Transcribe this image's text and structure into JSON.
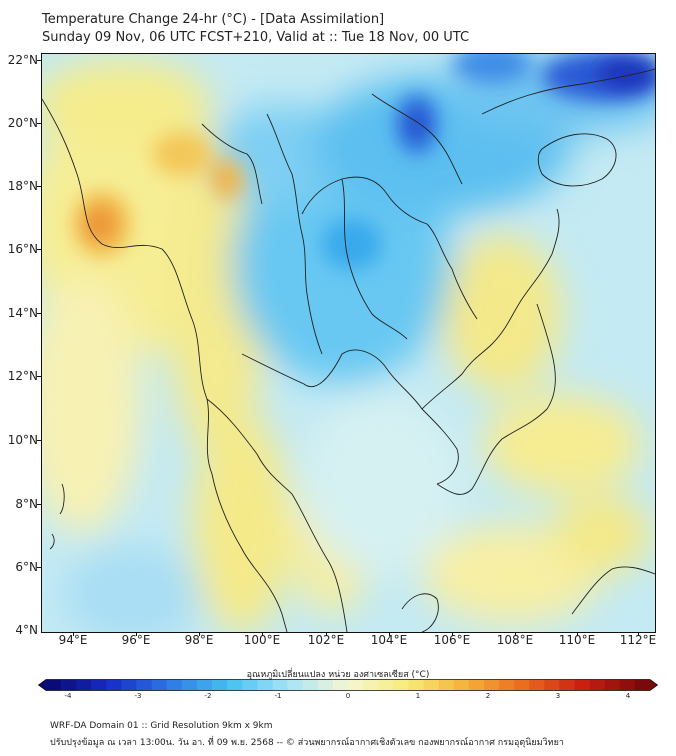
{
  "header": {
    "title": "Temperature Change 24-hr (°C) - [Data Assimilation]",
    "subtitle": "Sunday 09 Nov, 06 UTC FCST+210, Valid at :: Tue 18 Nov, 00 UTC"
  },
  "map": {
    "lat_labels": [
      "22°N",
      "20°N",
      "18°N",
      "16°N",
      "14°N",
      "12°N",
      "10°N",
      "8°N",
      "6°N",
      "4°N"
    ],
    "lon_labels": [
      "94°E",
      "96°E",
      "98°E",
      "100°E",
      "102°E",
      "104°E",
      "106°E",
      "108°E",
      "110°E",
      "112°E"
    ],
    "lat_range": [
      4,
      22.3
    ],
    "lon_range": [
      93.1,
      112.5
    ],
    "field_colors": {
      "cold_strong": "#1b3fd1",
      "cold": "#3fb4ee",
      "cool": "#8fd6f5",
      "neutral": "#dff3ee",
      "warm": "#f6ed8a",
      "hot": "#f3a53a",
      "very_hot": "#e8752a"
    }
  },
  "colorbar": {
    "title": "อุณหภูมิเปลี่ยนแปลง หน่วย องศาเซลเซียส (°C)",
    "labels": [
      "-4",
      "-3",
      "-2",
      "-1",
      "0",
      "1",
      "2",
      "3",
      "4"
    ],
    "range": [
      -4,
      4
    ],
    "colors": [
      "#0a0a78",
      "#1830c8",
      "#2f7be6",
      "#46c2f0",
      "#a8e4f5",
      "#f6f6d4",
      "#f7ec7a",
      "#f4b23a",
      "#ea6a1e",
      "#c81e12",
      "#7a0a0a"
    ]
  },
  "footer": {
    "line1": "WRF-DA Domain 01 :: Grid Resolution 9km x 9km",
    "line2": "ปรับปรุงข้อมูล ณ เวลา 13:00น. วัน อา. ที่ 09 พ.ย. 2568 -- © ส่วนพยากรณ์อากาศเชิงตัวเลข กองพยากรณ์อากาศ กรมอุตุนิยมวิทยา"
  }
}
